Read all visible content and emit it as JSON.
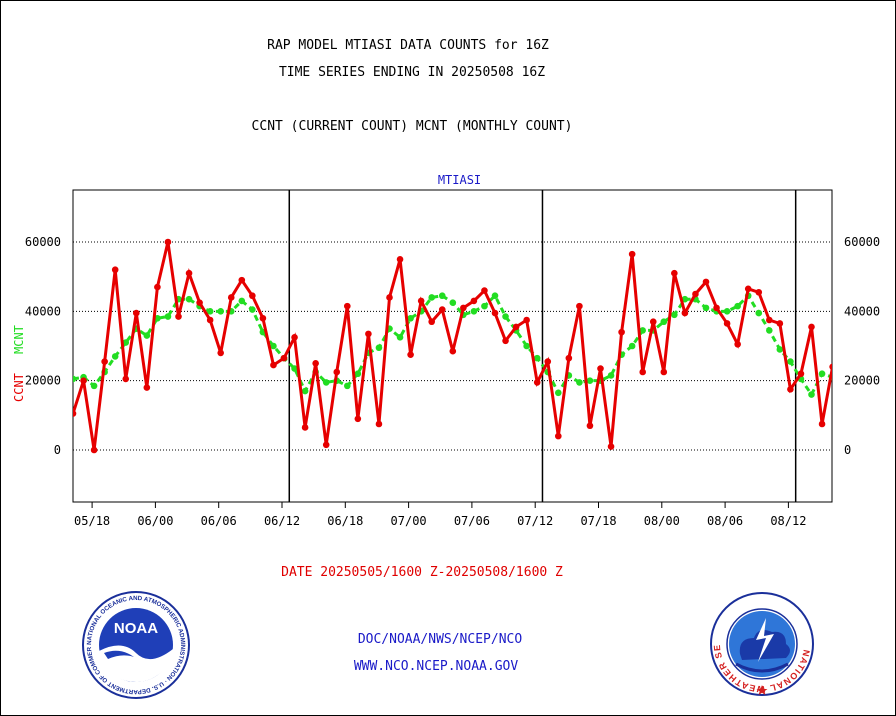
{
  "header": {
    "title_line1": "RAP MODEL MTIASI DATA COUNTS for 16Z",
    "title_line2": "TIME SERIES ENDING IN 20250508 16Z",
    "subtitle": "CCNT (CURRENT COUNT) MCNT (MONTHLY COUNT)"
  },
  "footer": {
    "date_range": "DATE 20250505/1600 Z-20250508/1600 Z",
    "org_line": "DOC/NOAA/NWS/NCEP/NCO",
    "url_line": "WWW.NCO.NCEP.NOAA.GOV",
    "noaa_logo_text": "NOAA",
    "noaa_ring_text": "NATIONAL OCEANIC AND ATMOSPHERIC ADMINISTRATION · U.S. DEPARTMENT OF COMMERCE ·",
    "nws_ring_text": "NATIONAL WEATHER SERVICE"
  },
  "colors": {
    "ccnt": "#e60000",
    "mcnt": "#22dd22",
    "label_blue": "#1a1ac8",
    "date_red": "#e00000"
  },
  "chart_data": {
    "type": "line",
    "title": "MTIASI",
    "ylabel_red": "CCNT",
    "ylabel_green": "MCNT",
    "ylim": [
      -15000,
      75000
    ],
    "yticks": [
      0,
      20000,
      40000,
      60000
    ],
    "ytick_labels": [
      "0",
      "20000",
      "40000",
      "60000"
    ],
    "xtick_labels": [
      "05/18",
      "06/00",
      "06/06",
      "06/12",
      "06/18",
      "07/00",
      "07/06",
      "07/12",
      "07/18",
      "08/00",
      "08/06",
      "08/12"
    ],
    "day_dividers_after_index": [
      20,
      44,
      68
    ],
    "x_count": 73,
    "series": [
      {
        "name": "CCNT",
        "values": [
          10500,
          20000,
          0,
          25500,
          52000,
          20500,
          39500,
          18000,
          47000,
          60000,
          38500,
          51000,
          42500,
          37500,
          28000,
          44000,
          49000,
          44500,
          38000,
          24500,
          26500,
          32500,
          6500,
          25000,
          1500,
          22500,
          41500,
          9000,
          33500,
          7500,
          44000,
          55000,
          27500,
          43000,
          37000,
          40500,
          28500,
          41000,
          43000,
          46000,
          39500,
          31500,
          35500,
          37500,
          19500,
          25500,
          4000,
          26500,
          41500,
          7000,
          23500,
          1000,
          34000,
          56500,
          22500,
          37000,
          22500,
          51000,
          39500,
          45000,
          48500,
          41000,
          36500,
          30500,
          46500,
          45500,
          37500,
          36500,
          17500,
          22000,
          35500,
          7500,
          24000
        ]
      },
      {
        "name": "MCNT",
        "values": [
          20500,
          21000,
          18500,
          22500,
          27000,
          31000,
          35000,
          33000,
          38000,
          38500,
          43500,
          43500,
          41500,
          40000,
          40000,
          40000,
          43000,
          40500,
          34000,
          30000,
          26500,
          23500,
          17000,
          22500,
          19500,
          20000,
          18500,
          22000,
          28000,
          29500,
          35000,
          32500,
          38000,
          40000,
          44000,
          44500,
          42500,
          39000,
          40000,
          41500,
          44500,
          38500,
          34500,
          30000,
          26500,
          22500,
          16500,
          21500,
          19500,
          20000,
          20000,
          21500,
          27500,
          30000,
          34500,
          34500,
          37000,
          39000,
          43500,
          43500,
          41000,
          40000,
          40000,
          41500,
          44500,
          39500,
          34500,
          29000,
          25500,
          20500,
          16000,
          22000,
          21000
        ]
      }
    ]
  }
}
